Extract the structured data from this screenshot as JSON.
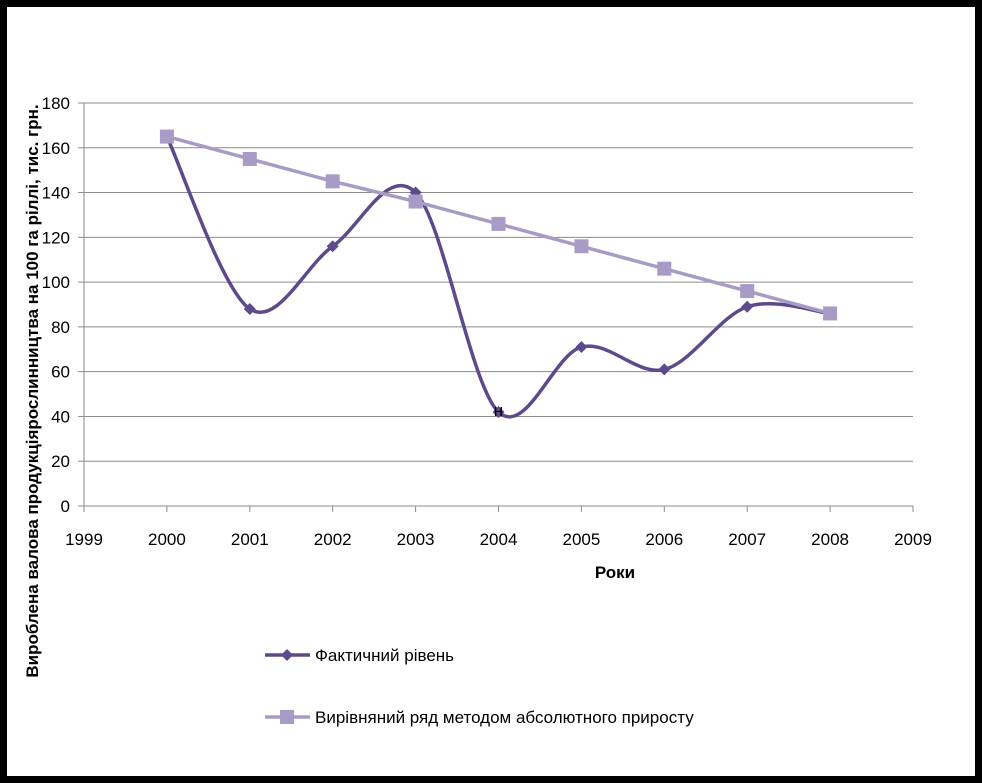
{
  "chart_data": {
    "type": "line",
    "title": "",
    "xlabel": "Роки",
    "ylabel": "Вироблена валова продукціярослинництва на 100 га ріллі, тис. грн.",
    "xlim": [
      1999,
      2009
    ],
    "ylim": [
      0,
      180
    ],
    "xticks": [
      1999,
      2000,
      2001,
      2002,
      2003,
      2004,
      2005,
      2006,
      2007,
      2008,
      2009
    ],
    "yticks": [
      0,
      20,
      40,
      60,
      80,
      100,
      120,
      140,
      160,
      180
    ],
    "grid": "horizontal",
    "legend_position": "bottom",
    "series": [
      {
        "name": "Фактичний рівень",
        "color": "#5e4a8b",
        "marker": "diamond",
        "smooth": true,
        "x": [
          2000,
          2001,
          2002,
          2003,
          2004,
          2005,
          2006,
          2007,
          2008
        ],
        "y": [
          165,
          88,
          116,
          140,
          42,
          71,
          61,
          89,
          86
        ]
      },
      {
        "name": "Вирівняний ряд методом абсолютного приросту",
        "color": "#a89bc6",
        "marker": "square",
        "smooth": false,
        "x": [
          2000,
          2001,
          2002,
          2003,
          2004,
          2005,
          2006,
          2007,
          2008
        ],
        "y": [
          165,
          155,
          145,
          136,
          126,
          116,
          106,
          96,
          86
        ]
      }
    ],
    "annotations": [
      {
        "x": 2004,
        "y": 42,
        "text": "н"
      }
    ]
  }
}
